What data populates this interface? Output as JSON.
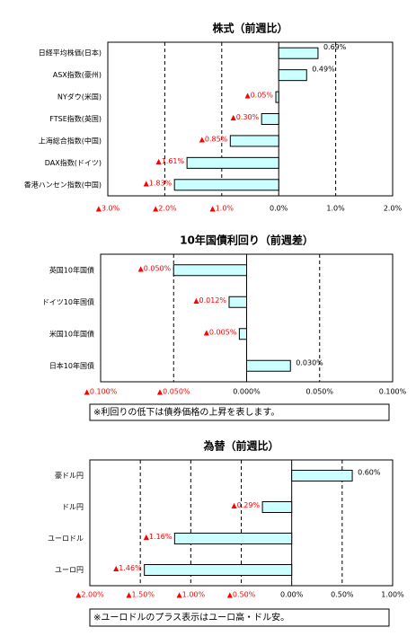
{
  "chart_data": [
    {
      "type": "hbar",
      "title": "株式（前週比）",
      "categories": [
        "日経平均株価(日本)",
        "ASX指数(豪州)",
        "NYダウ(米国)",
        "FTSE指数(英国)",
        "上海総合指数(中国)",
        "DAX指数(ドイツ)",
        "香港ハンセン指数(中国)"
      ],
      "values": [
        0.69,
        0.49,
        -0.05,
        -0.3,
        -0.85,
        -1.61,
        -1.83
      ],
      "value_labels": [
        "0.69%",
        "0.49%",
        "▲0.05%",
        "▲0.30%",
        "▲0.85%",
        "▲1.61%",
        "▲1.83%"
      ],
      "color": "#ccffff",
      "xlim": [
        -3,
        2
      ],
      "xticks": [
        {
          "value": -3,
          "label": "▲3.0%"
        },
        {
          "value": -2,
          "label": "▲2.0%"
        },
        {
          "value": -1,
          "label": "▲1.0%"
        },
        {
          "value": 0,
          "label": "0.0%"
        },
        {
          "value": 1,
          "label": "1.0%"
        },
        {
          "value": 2,
          "label": "2.0%"
        }
      ],
      "grid": true
    },
    {
      "type": "hbar",
      "title": "10年国債利回り（前週差）",
      "categories": [
        "英国10年国債",
        "ドイツ10年国債",
        "米国10年国債",
        "日本10年国債"
      ],
      "values": [
        -0.05,
        -0.012,
        -0.005,
        0.03
      ],
      "value_labels": [
        "▲0.050%",
        "▲0.012%",
        "▲0.005%",
        "0.030%"
      ],
      "color": "#ccffff",
      "xlim": [
        -0.1,
        0.1
      ],
      "xticks": [
        {
          "value": -0.1,
          "label": "▲0.100%"
        },
        {
          "value": -0.05,
          "label": "▲0.050%"
        },
        {
          "value": 0,
          "label": "0.000%"
        },
        {
          "value": 0.05,
          "label": "0.050%"
        },
        {
          "value": 0.1,
          "label": "0.100%"
        }
      ],
      "grid": true,
      "note": "※利回りの低下は債券価格の上昇を表します。"
    },
    {
      "type": "hbar",
      "title": "為替（前週比）",
      "categories": [
        "豪ドル円",
        "ドル円",
        "ユーロドル",
        "ユーロ円"
      ],
      "values": [
        0.6,
        -0.29,
        -1.16,
        -1.46
      ],
      "value_labels": [
        "0.60%",
        "▲0.29%",
        "▲1.16%",
        "▲1.46%"
      ],
      "color": "#ccffff",
      "xlim": [
        -2,
        1
      ],
      "xticks": [
        {
          "value": -2,
          "label": "▲2.00%"
        },
        {
          "value": -1.5,
          "label": "▲1.50%"
        },
        {
          "value": -1,
          "label": "▲1.00%"
        },
        {
          "value": -0.5,
          "label": "▲0.50%"
        },
        {
          "value": 0,
          "label": "0.00%"
        },
        {
          "value": 0.5,
          "label": "0.50%"
        },
        {
          "value": 1,
          "label": "1.00%"
        }
      ],
      "grid": true,
      "note": "※ユーロドルのプラス表示はユーロ高・ドル安。"
    }
  ]
}
